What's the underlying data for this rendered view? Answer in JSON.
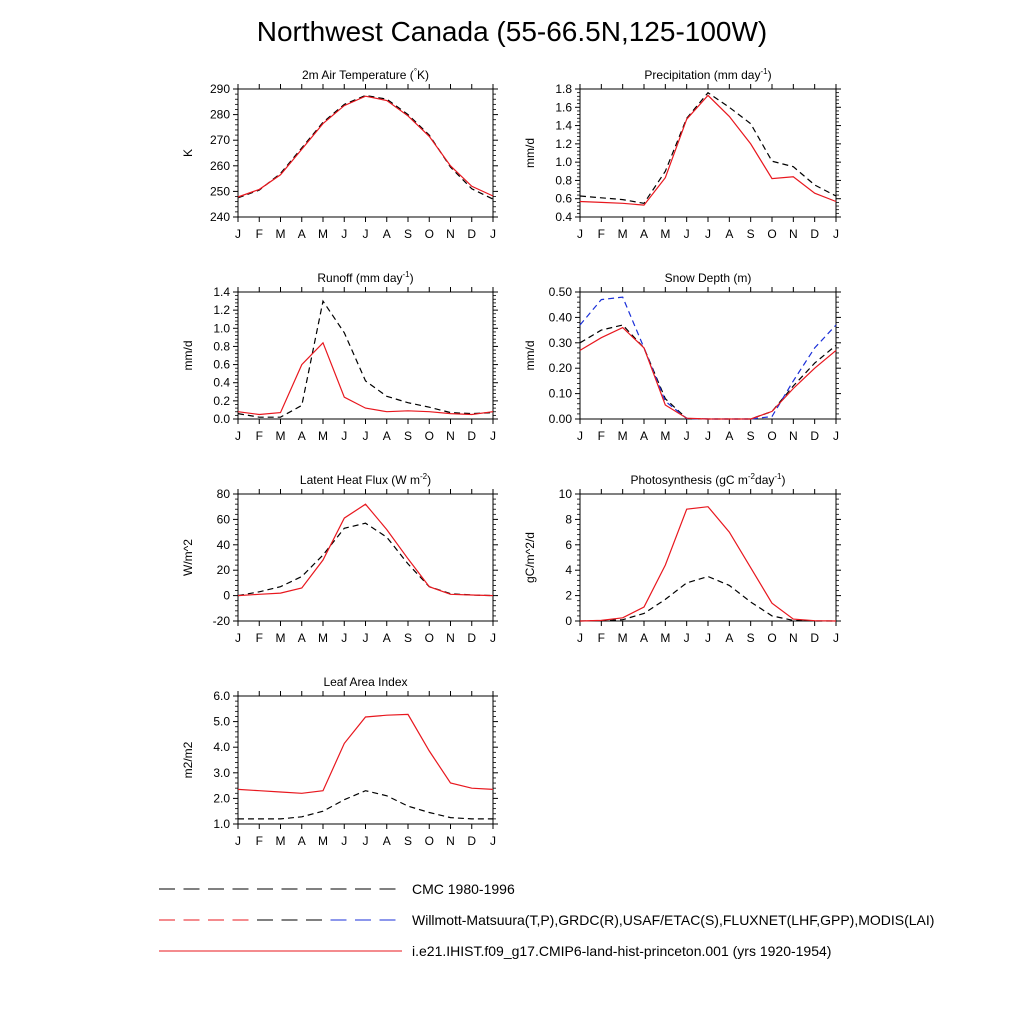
{
  "page": {
    "title": "Northwest Canada (55-66.5N,125-100W)"
  },
  "months": [
    "J",
    "F",
    "M",
    "A",
    "M",
    "J",
    "J",
    "A",
    "S",
    "O",
    "N",
    "D",
    "J"
  ],
  "colors": {
    "black": "#000000",
    "red": "#e8171e",
    "blue": "#1a2fd8"
  },
  "legend": [
    {
      "label": "CMC 1980-1996",
      "style": "dash",
      "colors": [
        "#000000"
      ]
    },
    {
      "label": "Willmott-Matsuura(T,P),GRDC(R),USAF/ETAC(S),FLUXNET(LHF,GPP),MODIS(LAI)",
      "style": "dash",
      "colors": [
        "#000000",
        "#e8171e",
        "#1a2fd8"
      ]
    },
    {
      "label": "i.e21.IHIST.f09_g17.CMIP6-land-hist-princeton.001 (yrs 1920-1954)",
      "style": "solid",
      "colors": [
        "#e8171e"
      ]
    }
  ],
  "chart_data": [
    {
      "type": "line",
      "title": "2m Air Temperature (°K)",
      "ylabel": "K",
      "ylim": [
        240,
        290
      ],
      "yticks": [
        240,
        250,
        260,
        270,
        280,
        290
      ],
      "ytick_labels": [
        "240",
        "250",
        "260",
        "270",
        "280",
        "290"
      ],
      "series": [
        {
          "color": "#000000",
          "dash": true,
          "values": [
            247.5,
            250.5,
            257,
            267,
            277,
            284,
            287.5,
            286,
            280,
            272,
            259.5,
            251,
            247
          ]
        },
        {
          "color": "#e8171e",
          "dash": false,
          "values": [
            247.8,
            250.8,
            256.5,
            266.5,
            276.5,
            283.5,
            287.2,
            285.5,
            279.5,
            271.5,
            260,
            252,
            248.2
          ]
        }
      ]
    },
    {
      "type": "line",
      "title": "Precipitation (mm day-1)",
      "ylabel": "mm/d",
      "ylim": [
        0.4,
        1.8
      ],
      "yticks": [
        0.4,
        0.6,
        0.8,
        1.0,
        1.2,
        1.4,
        1.6,
        1.8
      ],
      "ytick_labels": [
        "0.4",
        "0.6",
        "0.8",
        "1.0",
        "1.2",
        "1.4",
        "1.6",
        "1.8"
      ],
      "series": [
        {
          "color": "#000000",
          "dash": true,
          "values": [
            0.63,
            0.61,
            0.59,
            0.55,
            0.9,
            1.48,
            1.76,
            1.6,
            1.42,
            1.01,
            0.95,
            0.75,
            0.63
          ]
        },
        {
          "color": "#e8171e",
          "dash": false,
          "values": [
            0.57,
            0.56,
            0.55,
            0.53,
            0.83,
            1.47,
            1.73,
            1.5,
            1.2,
            0.82,
            0.84,
            0.66,
            0.57
          ]
        }
      ]
    },
    {
      "type": "line",
      "title": "Runoff (mm day-1)",
      "ylabel": "mm/d",
      "ylim": [
        0.0,
        1.4
      ],
      "yticks": [
        0.0,
        0.2,
        0.4,
        0.6,
        0.8,
        1.0,
        1.2,
        1.4
      ],
      "ytick_labels": [
        "0.0",
        "0.2",
        "0.4",
        "0.6",
        "0.8",
        "1.0",
        "1.2",
        "1.4"
      ],
      "series": [
        {
          "color": "#000000",
          "dash": true,
          "values": [
            0.06,
            0.02,
            0.02,
            0.15,
            1.3,
            0.95,
            0.42,
            0.25,
            0.18,
            0.13,
            0.07,
            0.06,
            0.07
          ]
        },
        {
          "color": "#e8171e",
          "dash": false,
          "values": [
            0.08,
            0.05,
            0.07,
            0.6,
            0.84,
            0.24,
            0.12,
            0.08,
            0.09,
            0.08,
            0.06,
            0.05,
            0.08
          ]
        }
      ]
    },
    {
      "type": "line",
      "title": "Snow Depth (m)",
      "ylabel": "mm/d",
      "ylim": [
        0.0,
        0.5
      ],
      "yticks": [
        0.0,
        0.1,
        0.2,
        0.3,
        0.4,
        0.5
      ],
      "ytick_labels": [
        "0.00",
        "0.10",
        "0.20",
        "0.30",
        "0.40",
        "0.50"
      ],
      "series": [
        {
          "color": "#000000",
          "dash": true,
          "values": [
            0.3,
            0.35,
            0.37,
            0.28,
            0.08,
            0.002,
            0.0,
            0.0,
            0.0,
            0.03,
            0.13,
            0.22,
            0.29
          ]
        },
        {
          "color": "#1a2fd8",
          "dash": true,
          "values": [
            0.37,
            0.47,
            0.48,
            0.28,
            0.07,
            0.002,
            0.0,
            0.0,
            0.0,
            0.01,
            0.15,
            0.28,
            0.37
          ]
        },
        {
          "color": "#e8171e",
          "dash": false,
          "values": [
            0.27,
            0.32,
            0.36,
            0.28,
            0.055,
            0.003,
            0.0,
            0.0,
            0.0,
            0.03,
            0.12,
            0.2,
            0.27
          ]
        }
      ]
    },
    {
      "type": "line",
      "title": "Latent Heat Flux (W m-2)",
      "ylabel": "W/m^2",
      "ylim": [
        -20,
        80
      ],
      "yticks": [
        -20,
        0,
        20,
        40,
        60,
        80
      ],
      "ytick_labels": [
        "-20",
        "0",
        "20",
        "40",
        "60",
        "80"
      ],
      "series": [
        {
          "color": "#000000",
          "dash": true,
          "values": [
            0,
            3,
            7,
            15,
            32,
            53,
            57,
            46,
            25,
            7,
            1.5,
            0.5,
            0
          ]
        },
        {
          "color": "#e8171e",
          "dash": false,
          "values": [
            0,
            1,
            2,
            6,
            28,
            61,
            72,
            52,
            29,
            7,
            1,
            0.5,
            0
          ]
        }
      ]
    },
    {
      "type": "line",
      "title": "Photosynthesis (gC m-2day-1)",
      "ylabel": "gC/m^2/d",
      "ylim": [
        0,
        10
      ],
      "yticks": [
        0,
        2,
        4,
        6,
        8,
        10
      ],
      "ytick_labels": [
        "0",
        "2",
        "4",
        "6",
        "8",
        "10"
      ],
      "series": [
        {
          "color": "#000000",
          "dash": true,
          "values": [
            0,
            0.02,
            0.1,
            0.6,
            1.7,
            3.0,
            3.5,
            2.8,
            1.5,
            0.4,
            0.05,
            0,
            0
          ]
        },
        {
          "color": "#e8171e",
          "dash": false,
          "values": [
            0,
            0.05,
            0.25,
            1.1,
            4.4,
            8.8,
            9.0,
            7.0,
            4.2,
            1.4,
            0.15,
            0.02,
            0
          ]
        }
      ]
    },
    {
      "type": "line",
      "title": "Leaf Area Index",
      "ylabel": "m2/m2",
      "ylim": [
        1.0,
        6.0
      ],
      "yticks": [
        1.0,
        2.0,
        3.0,
        4.0,
        5.0,
        6.0
      ],
      "ytick_labels": [
        "1.0",
        "2.0",
        "3.0",
        "4.0",
        "5.0",
        "6.0"
      ],
      "series": [
        {
          "color": "#000000",
          "dash": true,
          "values": [
            1.2,
            1.2,
            1.2,
            1.28,
            1.5,
            1.95,
            2.3,
            2.1,
            1.7,
            1.45,
            1.25,
            1.2,
            1.2
          ]
        },
        {
          "color": "#e8171e",
          "dash": false,
          "values": [
            2.35,
            2.3,
            2.25,
            2.2,
            2.3,
            4.15,
            5.18,
            5.25,
            5.28,
            3.85,
            2.6,
            2.4,
            2.35
          ]
        }
      ]
    }
  ]
}
